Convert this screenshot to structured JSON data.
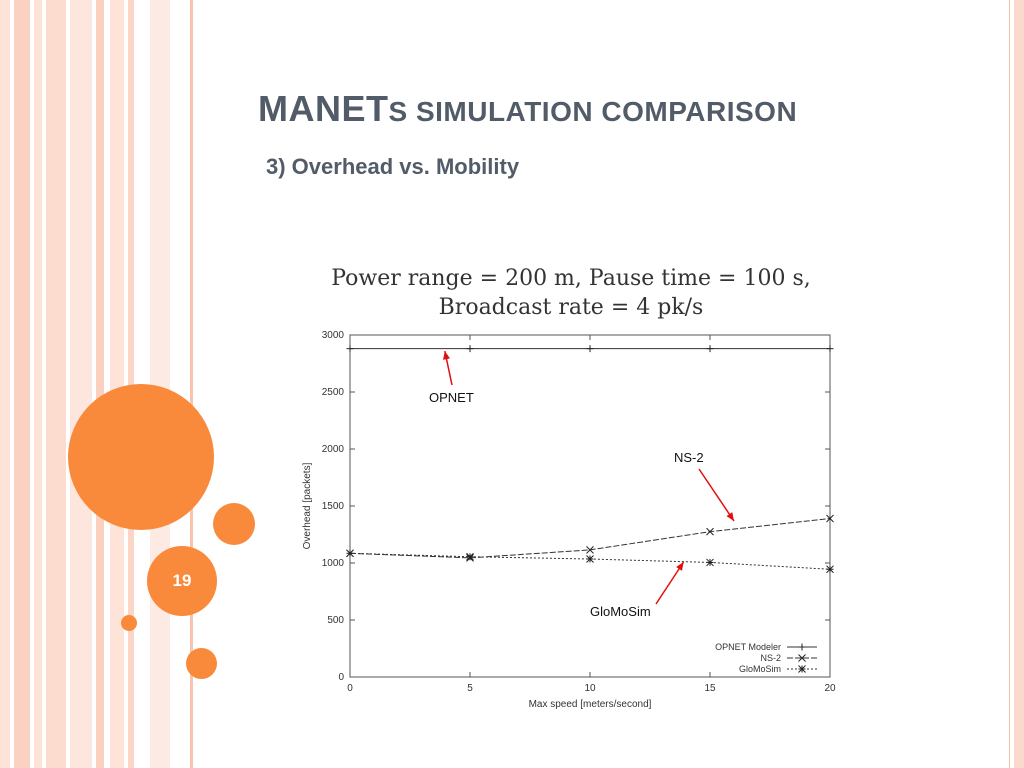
{
  "slide": {
    "title_main": "MANET",
    "title_rest": "s simulation comparison",
    "subtitle": "3) Overhead vs. Mobility",
    "page_number": "19",
    "accent_color": "#f98a3c",
    "title_color": "#525c69"
  },
  "annotations": {
    "opnet": "OPNET",
    "ns2": "NS-2",
    "glomosim": "GloMoSim",
    "arrow_color": "#e01010"
  },
  "chart_data": {
    "type": "line",
    "title_line1": "Power range = 200 m, Pause time = 100 s,",
    "title_line2": "Broadcast rate = 4 pk/s",
    "xlabel": "Max speed [meters/second]",
    "ylabel": "Overhead [packets]",
    "xlim": [
      0,
      20
    ],
    "ylim": [
      0,
      3000
    ],
    "x_ticks": [
      0,
      5,
      10,
      15,
      20
    ],
    "y_ticks": [
      0,
      500,
      1000,
      1500,
      2000,
      2500,
      3000
    ],
    "grid": false,
    "legend_position": "bottom-right",
    "series": [
      {
        "name": "OPNET Modeler",
        "x": [
          0,
          5,
          10,
          15,
          20
        ],
        "y": [
          2880,
          2880,
          2880,
          2880,
          2880
        ],
        "marker": "+"
      },
      {
        "name": "NS-2",
        "x": [
          0,
          5,
          10,
          15,
          20
        ],
        "y": [
          1085,
          1045,
          1115,
          1275,
          1390
        ],
        "marker": "x"
      },
      {
        "name": "GloMoSim",
        "x": [
          0,
          5,
          10,
          15,
          20
        ],
        "y": [
          1085,
          1055,
          1035,
          1005,
          945
        ],
        "marker": "*"
      }
    ]
  }
}
